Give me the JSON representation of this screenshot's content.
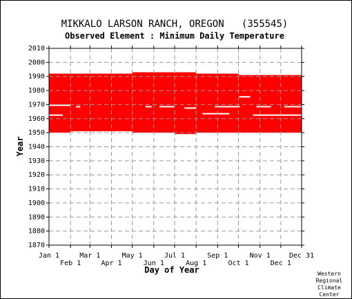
{
  "chart_data": {
    "type": "heatmap",
    "title": "MIKKALO LARSON RANCH, OREGON   (355545)",
    "subtitle": "Observed Element : Minimum Daily Temperature",
    "xlabel": "Day of Year",
    "ylabel": "Year",
    "ylim": [
      1870,
      2010
    ],
    "y_ticks": [
      1870,
      1880,
      1890,
      1900,
      1910,
      1920,
      1930,
      1940,
      1950,
      1960,
      1970,
      1980,
      1990,
      2000,
      2010
    ],
    "x_ticks_top_row": [
      {
        "label": "Jan 1",
        "day": 1
      },
      {
        "label": "Mar 1",
        "day": 60
      },
      {
        "label": "May 1",
        "day": 121
      },
      {
        "label": "Jul 1",
        "day": 182
      },
      {
        "label": "Sep 1",
        "day": 244
      },
      {
        "label": "Nov 1",
        "day": 305
      },
      {
        "label": "Dec 31",
        "day": 365
      }
    ],
    "x_ticks_bottom_row": [
      {
        "label": "Feb 1",
        "day": 32
      },
      {
        "label": "Apr 1",
        "day": 91
      },
      {
        "label": "Jun 1",
        "day": 152
      },
      {
        "label": "Aug 1",
        "day": 213
      },
      {
        "label": "Oct 1",
        "day": 274
      },
      {
        "label": "Dec 1",
        "day": 335
      }
    ],
    "grid": true,
    "data_color": "#ff0000",
    "observed_periods": [
      {
        "day_start": 1,
        "day_end": 31,
        "year_start": 1950,
        "year_end": 1992
      },
      {
        "day_start": 32,
        "day_end": 120,
        "year_start": 1951,
        "year_end": 1992
      },
      {
        "day_start": 121,
        "day_end": 181,
        "year_start": 1950,
        "year_end": 1993
      },
      {
        "day_start": 182,
        "day_end": 212,
        "year_start": 1949,
        "year_end": 1993
      },
      {
        "day_start": 213,
        "day_end": 273,
        "year_start": 1950,
        "year_end": 1992
      },
      {
        "day_start": 274,
        "day_end": 365,
        "year_start": 1950,
        "year_end": 1991
      }
    ],
    "missing_data": [
      {
        "day_start": 1,
        "day_end": 31,
        "year": 1969
      },
      {
        "day_start": 1,
        "day_end": 20,
        "year": 1962
      },
      {
        "day_start": 40,
        "day_end": 45,
        "year": 1968
      },
      {
        "day_start": 140,
        "day_end": 148,
        "year": 1968
      },
      {
        "day_start": 160,
        "day_end": 180,
        "year": 1968
      },
      {
        "day_start": 196,
        "day_end": 212,
        "year": 1967
      },
      {
        "day_start": 240,
        "day_end": 275,
        "year": 1968
      },
      {
        "day_start": 222,
        "day_end": 260,
        "year": 1963
      },
      {
        "day_start": 295,
        "day_end": 365,
        "year": 1962
      },
      {
        "day_start": 275,
        "day_end": 290,
        "year": 1975
      },
      {
        "day_start": 300,
        "day_end": 320,
        "year": 1968
      },
      {
        "day_start": 340,
        "day_end": 365,
        "year": 1968
      }
    ]
  },
  "credit": {
    "line1": "Western",
    "line2": "Regional",
    "line3": "Climate",
    "line4": "Center"
  }
}
